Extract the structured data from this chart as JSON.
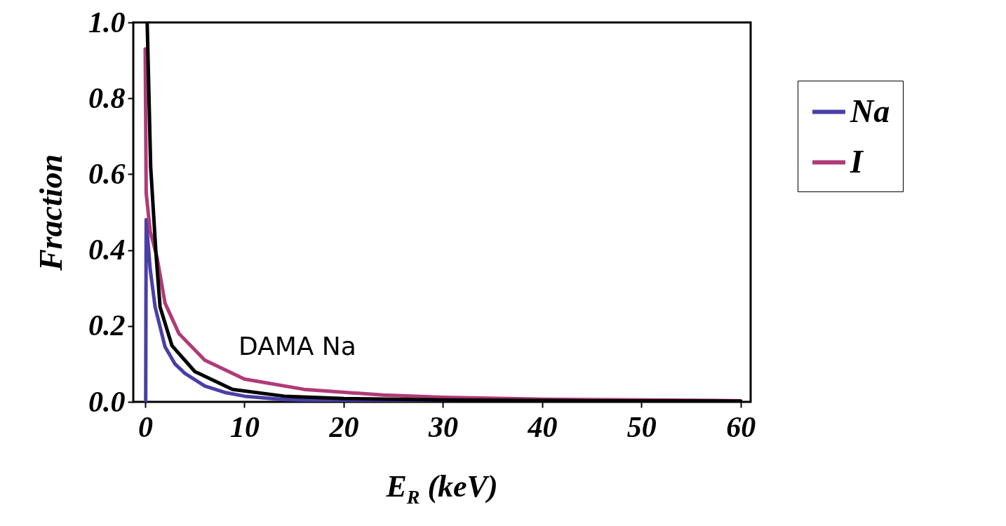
{
  "chart_data": {
    "type": "line",
    "xlabel": "E$_{R}$ (keV)",
    "ylabel": "Fraction",
    "xlim": [
      -1.2,
      61
    ],
    "ylim": [
      0,
      1
    ],
    "xticks": [
      0,
      10,
      20,
      30,
      40,
      50,
      60
    ],
    "yticks": [
      {
        "value": 0,
        "label": "0.0"
      },
      {
        "value": 0.2,
        "label": "0.2"
      },
      {
        "value": 0.4,
        "label": "0.4"
      },
      {
        "value": 0.6,
        "label": "0.6"
      },
      {
        "value": 0.8,
        "label": "0.8"
      },
      {
        "value": 1,
        "label": "1.0"
      }
    ],
    "legend": "right",
    "grid": false,
    "annotations": [
      "DAMA Na"
    ],
    "series": [
      {
        "name": "Na",
        "color": "#4a3fa6",
        "x": [
          0.05,
          0.1,
          0.5,
          1,
          2,
          3,
          4,
          6,
          8,
          10,
          14,
          20,
          30,
          60
        ],
        "values": [
          0,
          0.48,
          0.35,
          0.25,
          0.145,
          0.1,
          0.075,
          0.042,
          0.025,
          0.015,
          0.006,
          0.002,
          0.001,
          0
        ]
      },
      {
        "name": "I",
        "color": "#b03a78",
        "x": [
          0,
          0.1,
          0.5,
          1.2,
          2,
          3.4,
          6,
          10,
          16,
          24,
          30,
          40,
          60
        ],
        "values": [
          0.93,
          0.55,
          0.45,
          0.38,
          0.26,
          0.18,
          0.11,
          0.06,
          0.033,
          0.018,
          0.012,
          0.007,
          0.003
        ]
      },
      {
        "color": "#000000",
        "x": [
          0.2,
          0.55,
          1.1,
          1.5,
          2.7,
          5,
          8.8,
          14,
          20,
          30,
          45,
          60
        ],
        "values": [
          1,
          0.62,
          0.385,
          0.25,
          0.148,
          0.08,
          0.033,
          0.015,
          0.009,
          0.005,
          0.003,
          0.002
        ]
      }
    ]
  }
}
